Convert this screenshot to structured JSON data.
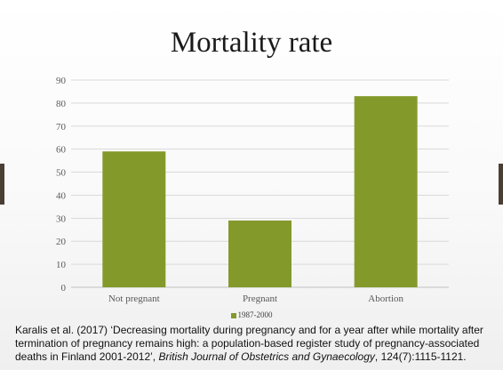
{
  "slide": {
    "title": "Mortality rate"
  },
  "colors": {
    "bar": "#839a2b",
    "gridline": "#d9d9d9",
    "axis_line": "#bfbfbf",
    "nav_arrow": "#4a3f33"
  },
  "chart_data": {
    "type": "bar",
    "title": "Mortality rate",
    "categories": [
      "Not pregnant",
      "Pregnant",
      "Abortion"
    ],
    "series": [
      {
        "name": "1987-2000",
        "values": [
          59,
          29,
          83
        ]
      }
    ],
    "yticks": [
      "0",
      "10",
      "20",
      "30",
      "40",
      "50",
      "60",
      "70",
      "80",
      "90"
    ],
    "ylim": [
      0,
      90
    ],
    "xlabel": "",
    "ylabel": "",
    "grid": true,
    "legend_position": "bottom"
  },
  "legend": {
    "label": "1987-2000"
  },
  "citation": {
    "before": "Karalis et al. (2017) ‘Decreasing mortality during pregnancy and for a year after while mortality after termination of pregnancy remains high: a population-based register study of pregnancy-associated deaths in Finland 2001-2012’, ",
    "journal": "British Journal of Obstetrics and Gynaecology",
    "after": ", 124(7):1115-1121."
  }
}
